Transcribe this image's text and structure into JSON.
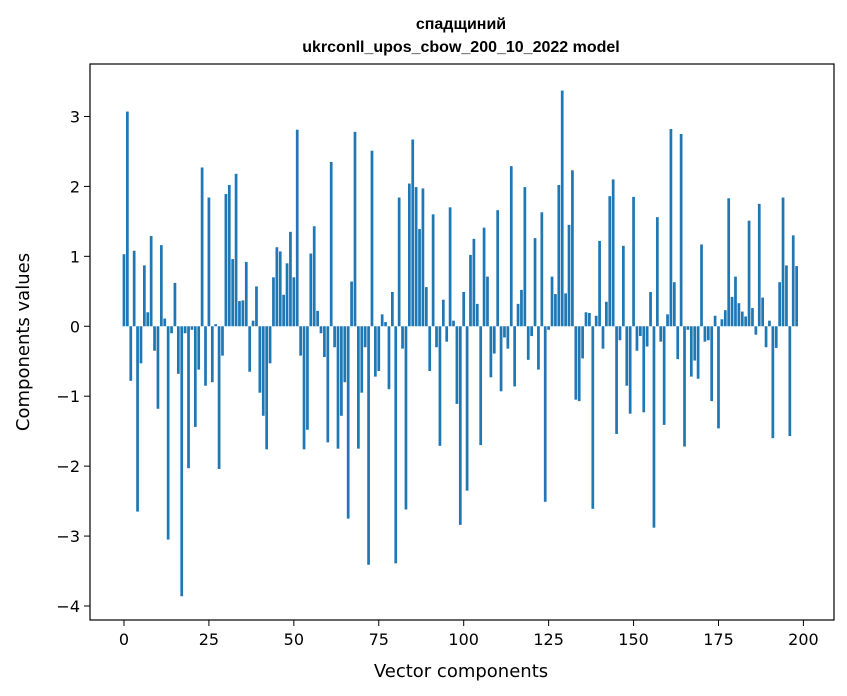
{
  "chart_data": {
    "type": "bar",
    "title": "спадщиний",
    "subtitle": "ukrconll_upos_cbow_200_10_2022 model",
    "xlabel": "Vector components",
    "ylabel": "Components values",
    "xlim": [
      -10,
      209
    ],
    "ylim": [
      -4.2,
      3.75
    ],
    "xticks": [
      0,
      25,
      50,
      75,
      100,
      125,
      150,
      175,
      200
    ],
    "yticks": [
      -4,
      -3,
      -2,
      -1,
      0,
      1,
      2,
      3
    ],
    "xtick_labels": [
      "0",
      "25",
      "50",
      "75",
      "100",
      "125",
      "150",
      "175",
      "200"
    ],
    "ytick_labels": [
      "−4",
      "−3",
      "−2",
      "−1",
      "0",
      "1",
      "2",
      "3"
    ],
    "bar_color": "#1f77b4",
    "grid": false,
    "values": [
      1.03,
      3.07,
      -0.78,
      1.08,
      -2.65,
      -0.53,
      0.87,
      0.2,
      1.29,
      -0.35,
      -1.18,
      1.16,
      0.11,
      -3.05,
      -0.1,
      0.62,
      -0.68,
      -3.86,
      -0.1,
      -2.03,
      -0.05,
      -1.44,
      -0.62,
      2.27,
      -0.85,
      1.84,
      -0.8,
      0.03,
      -2.04,
      -0.42,
      1.89,
      2.02,
      0.96,
      2.18,
      0.36,
      0.37,
      0.92,
      -0.65,
      0.08,
      0.57,
      -0.95,
      -1.28,
      -1.76,
      -0.53,
      0.7,
      1.13,
      1.07,
      0.45,
      0.9,
      1.35,
      0.7,
      2.81,
      -0.42,
      -1.76,
      -1.48,
      1.04,
      1.43,
      0.22,
      -0.1,
      -0.44,
      -1.66,
      2.35,
      -0.3,
      -1.75,
      -1.28,
      -0.8,
      -2.75,
      0.64,
      2.78,
      -1.75,
      -0.95,
      -0.3,
      -3.41,
      2.51,
      -0.72,
      -0.64,
      0.17,
      0.06,
      -0.9,
      0.49,
      -3.39,
      1.84,
      -0.32,
      -2.62,
      2.04,
      2.67,
      1.99,
      1.39,
      1.97,
      0.56,
      -0.64,
      1.6,
      -0.3,
      -1.71,
      0.38,
      -0.22,
      1.7,
      0.08,
      -1.11,
      -2.84,
      0.49,
      -2.35,
      1.02,
      1.25,
      0.32,
      -1.7,
      1.41,
      0.71,
      -0.73,
      -0.39,
      1.66,
      -0.93,
      -0.16,
      -0.32,
      2.29,
      -0.86,
      0.32,
      0.52,
      1.99,
      -0.48,
      -0.14,
      1.26,
      -0.62,
      1.63,
      -2.51,
      -0.05,
      0.71,
      0.46,
      2.02,
      3.37,
      0.47,
      1.45,
      2.23,
      -1.05,
      -1.07,
      -0.46,
      0.2,
      0.19,
      -2.61,
      0.15,
      1.22,
      -0.32,
      0.35,
      1.86,
      2.1,
      -1.54,
      -0.2,
      1.15,
      -0.85,
      -1.25,
      1.85,
      -0.35,
      -0.14,
      -1.23,
      -0.29,
      0.49,
      -2.88,
      1.56,
      -0.22,
      -1.41,
      0.17,
      2.82,
      0.63,
      -0.47,
      2.75,
      -1.72,
      -0.05,
      -0.72,
      -0.49,
      -0.75,
      1.17,
      -0.22,
      -0.2,
      -1.07,
      0.15,
      -1.46,
      0.1,
      0.23,
      1.83,
      0.42,
      0.71,
      0.33,
      0.21,
      0.14,
      1.51,
      0.26,
      -0.12,
      1.75,
      0.41,
      -0.3,
      0.08,
      -1.6,
      -0.31,
      0.63,
      1.84,
      0.87,
      -1.57,
      1.3,
      0.86
    ]
  }
}
